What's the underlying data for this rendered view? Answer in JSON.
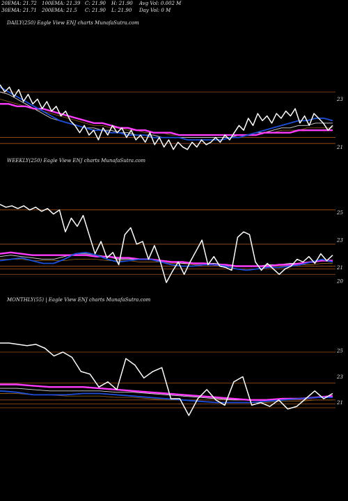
{
  "header": {
    "row1": [
      "20EMA: 21.72",
      "100EMA: 21.39",
      "C: 21.90",
      "H: 21.90",
      "Avg Vol: 0.002  M"
    ],
    "row2": [
      "30EMA: 21.71",
      "200EMA: 21.5",
      "C: 21.90",
      "L: 21.90",
      "Day Vol: 0  M"
    ]
  },
  "colors": {
    "background": "#000000",
    "price": "#ffffff",
    "ema_short": "#1e4fd8",
    "ema_mid": "#d9d9d9",
    "ema_brown": "#8a5a1a",
    "ema_long": "#ff3cff",
    "grid": "#a0521c",
    "text": "#e6e6e6"
  },
  "chart_data": [
    {
      "type": "line",
      "title": "DAILY(250) Eagle  View  ENJ charts MunafaSutra.com",
      "ylim": [
        20.4,
        24.0
      ],
      "y_ticks": [
        {
          "value": 23,
          "label": "23"
        },
        {
          "value": 21,
          "label": "21"
        }
      ],
      "grid_lines": [
        23.3,
        21.4,
        21.15
      ],
      "series": [
        {
          "role": "price",
          "values": [
            23.6,
            23.3,
            23.5,
            23.1,
            23.4,
            22.9,
            23.2,
            22.8,
            23.0,
            22.6,
            22.9,
            22.5,
            22.7,
            22.3,
            22.5,
            22.1,
            21.9,
            21.6,
            21.9,
            21.5,
            21.7,
            21.3,
            21.8,
            21.5,
            21.9,
            21.6,
            21.8,
            21.4,
            21.7,
            21.3,
            21.5,
            21.2,
            21.6,
            21.1,
            21.4,
            21.0,
            21.3,
            20.9,
            21.2,
            21.0,
            20.9,
            21.2,
            21.0,
            21.3,
            21.1,
            21.2,
            21.4,
            21.2,
            21.5,
            21.3,
            21.6,
            21.9,
            21.7,
            22.2,
            21.9,
            22.4,
            22.1,
            22.3,
            22.0,
            22.4,
            22.2,
            22.5,
            22.3,
            22.6,
            22.0,
            22.3,
            21.9,
            22.4,
            22.2,
            22.0,
            21.7,
            21.9
          ]
        },
        {
          "role": "ema-blue",
          "values": [
            23.5,
            23.3,
            23.1,
            22.9,
            22.7,
            22.5,
            22.3,
            22.1,
            22.0,
            21.9,
            21.8,
            21.7,
            21.7,
            21.6,
            21.6,
            21.5,
            21.5,
            21.5,
            21.4,
            21.4,
            21.4,
            21.4,
            21.3,
            21.3,
            21.3,
            21.3,
            21.3,
            21.4,
            21.4,
            21.5,
            21.6,
            21.7,
            21.8,
            21.9,
            22.0,
            22.1,
            22.1,
            22.2,
            22.2,
            22.1
          ]
        },
        {
          "role": "ema-white",
          "values": [
            23.3,
            23.2,
            23.0,
            22.8,
            22.6,
            22.4,
            22.2,
            22.1,
            22.0,
            21.9,
            21.8,
            21.8,
            21.7,
            21.7,
            21.6,
            21.6,
            21.5,
            21.5,
            21.5,
            21.4,
            21.4,
            21.4,
            21.4,
            21.4,
            21.4,
            21.4,
            21.4,
            21.4,
            21.5,
            21.5,
            21.6,
            21.6,
            21.7,
            21.8,
            21.8,
            21.9,
            21.9,
            22.0,
            22.0,
            22.0
          ]
        },
        {
          "role": "ema-brown",
          "values": [
            23.0,
            22.9,
            22.8,
            22.7,
            22.6,
            22.5,
            22.4,
            22.3,
            22.2,
            22.1,
            22.0,
            21.9,
            21.9,
            21.8,
            21.8,
            21.7,
            21.7,
            21.6,
            21.6,
            21.6,
            21.5,
            21.5,
            21.5,
            21.5,
            21.5,
            21.5,
            21.5,
            21.5,
            21.5,
            21.5,
            21.6,
            21.6,
            21.6,
            21.7,
            21.7,
            21.7,
            21.8,
            21.8,
            21.8,
            21.8
          ]
        },
        {
          "role": "ema-magenta",
          "values": [
            22.8,
            22.8,
            22.7,
            22.7,
            22.6,
            22.6,
            22.5,
            22.4,
            22.3,
            22.2,
            22.1,
            22.0,
            22.0,
            21.9,
            21.8,
            21.8,
            21.7,
            21.7,
            21.6,
            21.6,
            21.6,
            21.5,
            21.5,
            21.5,
            21.5,
            21.5,
            21.5,
            21.5,
            21.5,
            21.5,
            21.5,
            21.6,
            21.6,
            21.6,
            21.6,
            21.7,
            21.7,
            21.7,
            21.7,
            21.7
          ]
        }
      ]
    },
    {
      "type": "line",
      "title": "WEEKLY(250) Eagle  View  ENJ charts MunafaSutra.com",
      "ylim": [
        19.6,
        26.2
      ],
      "y_ticks": [
        {
          "value": 25,
          "label": "25"
        },
        {
          "value": 23,
          "label": "23"
        },
        {
          "value": 21,
          "label": "21"
        },
        {
          "value": 20,
          "label": "20"
        }
      ],
      "grid_lines": [
        25.2,
        22.7,
        21.1,
        20.9,
        20.5
      ],
      "series": [
        {
          "role": "price",
          "values": [
            25.6,
            25.4,
            25.5,
            25.3,
            25.5,
            25.2,
            25.4,
            25.1,
            25.3,
            24.9,
            25.2,
            23.6,
            24.6,
            24.0,
            24.8,
            23.4,
            22.0,
            22.9,
            21.7,
            22.1,
            21.2,
            23.4,
            23.9,
            22.7,
            22.9,
            21.6,
            22.6,
            21.4,
            19.9,
            20.7,
            21.4,
            20.5,
            21.4,
            22.2,
            23.0,
            21.2,
            21.8,
            21.1,
            21.0,
            20.8,
            23.2,
            23.6,
            23.4,
            21.4,
            20.8,
            21.3,
            20.9,
            20.5,
            20.9,
            21.1,
            21.6,
            21.4,
            21.8,
            21.3,
            22.0,
            21.5,
            21.9
          ]
        },
        {
          "role": "ema-blue",
          "values": [
            21.5,
            21.6,
            21.7,
            21.5,
            21.3,
            21.3,
            21.6,
            22.0,
            22.1,
            21.9,
            21.6,
            21.4,
            21.5,
            21.6,
            21.6,
            21.4,
            21.2,
            21.1,
            21.1,
            21.2,
            21.2,
            21.1,
            20.9,
            20.8,
            20.9,
            21.0,
            21.0,
            21.1,
            21.2,
            21.4,
            21.6,
            21.4
          ]
        },
        {
          "role": "ema-white",
          "values": [
            21.8,
            21.9,
            21.8,
            21.7,
            21.6,
            21.6,
            21.8,
            22.0,
            22.0,
            21.9,
            21.8,
            21.6,
            21.6,
            21.6,
            21.6,
            21.5,
            21.4,
            21.3,
            21.3,
            21.3,
            21.3,
            21.2,
            21.1,
            21.1,
            21.1,
            21.2,
            21.2,
            21.3,
            21.3,
            21.4,
            21.5,
            21.4
          ]
        },
        {
          "role": "ema-brown",
          "values": [
            21.6,
            21.6,
            21.6,
            21.5,
            21.5,
            21.5,
            21.5,
            21.6,
            21.6,
            21.6,
            21.5,
            21.5,
            21.5,
            21.4,
            21.4,
            21.4,
            21.3,
            21.3,
            21.2,
            21.2,
            21.2,
            21.2,
            21.1,
            21.1,
            21.1,
            21.1,
            21.1,
            21.1,
            21.2,
            21.2,
            21.3,
            21.3
          ]
        },
        {
          "role": "ema-magenta",
          "values": [
            22.0,
            22.1,
            22.0,
            21.9,
            21.9,
            21.9,
            21.9,
            21.9,
            21.9,
            21.8,
            21.8,
            21.7,
            21.7,
            21.6,
            21.6,
            21.5,
            21.4,
            21.4,
            21.3,
            21.3,
            21.2,
            21.2,
            21.1,
            21.1,
            21.1,
            21.1,
            21.2,
            21.2,
            21.3,
            21.4,
            21.5,
            21.5
          ]
        }
      ]
    },
    {
      "type": "line",
      "title": "MONTHLY(55)                | Eagle  View  ENJ charts MunafaSutra.com",
      "ylim": [
        19.2,
        26.3
      ],
      "y_ticks": [
        {
          "value": 25,
          "label": "25"
        },
        {
          "value": 23,
          "label": "23"
        },
        {
          "value": 21,
          "label": "21"
        }
      ],
      "grid_lines": [
        24.9,
        22.5,
        21.2,
        20.9,
        20.6
      ],
      "series": [
        {
          "role": "price",
          "values": [
            25.6,
            25.6,
            25.5,
            25.4,
            25.5,
            25.2,
            24.6,
            24.9,
            24.5,
            23.4,
            23.2,
            22.2,
            22.6,
            22.0,
            24.4,
            23.9,
            22.9,
            23.4,
            23.7,
            21.3,
            21.3,
            20.0,
            21.3,
            22.0,
            21.2,
            20.8,
            22.6,
            23.0,
            20.8,
            21.0,
            20.7,
            21.2,
            20.5,
            20.7,
            21.3,
            21.9,
            21.3,
            21.7
          ]
        },
        {
          "role": "ema-blue",
          "values": [
            21.9,
            21.8,
            21.6,
            21.6,
            21.6,
            21.7,
            21.7,
            21.6,
            21.5,
            21.4,
            21.3,
            21.2,
            21.1,
            21.0,
            21.0,
            21.0,
            21.1,
            21.2,
            21.3,
            21.4,
            21.4
          ]
        },
        {
          "role": "ema-white",
          "values": [
            22.1,
            22.1,
            22.0,
            21.9,
            21.9,
            21.9,
            21.9,
            21.8,
            21.8,
            21.7,
            21.6,
            21.5,
            21.4,
            21.3,
            21.2,
            21.2,
            21.2,
            21.3,
            21.3,
            21.4,
            21.4
          ]
        },
        {
          "role": "ema-brown",
          "values": [
            21.7,
            21.7,
            21.6,
            21.6,
            21.5,
            21.5,
            21.5,
            21.4,
            21.4,
            21.3,
            21.2,
            21.2,
            21.1,
            21.0,
            21.0,
            21.0,
            21.0,
            21.1,
            21.1,
            21.2,
            21.2
          ]
        },
        {
          "role": "ema-magenta",
          "values": [
            22.4,
            22.4,
            22.3,
            22.2,
            22.2,
            22.2,
            22.1,
            22.0,
            21.9,
            21.8,
            21.7,
            21.6,
            21.5,
            21.4,
            21.3,
            21.2,
            21.2,
            21.3,
            21.3,
            21.4,
            21.5
          ]
        }
      ]
    }
  ]
}
